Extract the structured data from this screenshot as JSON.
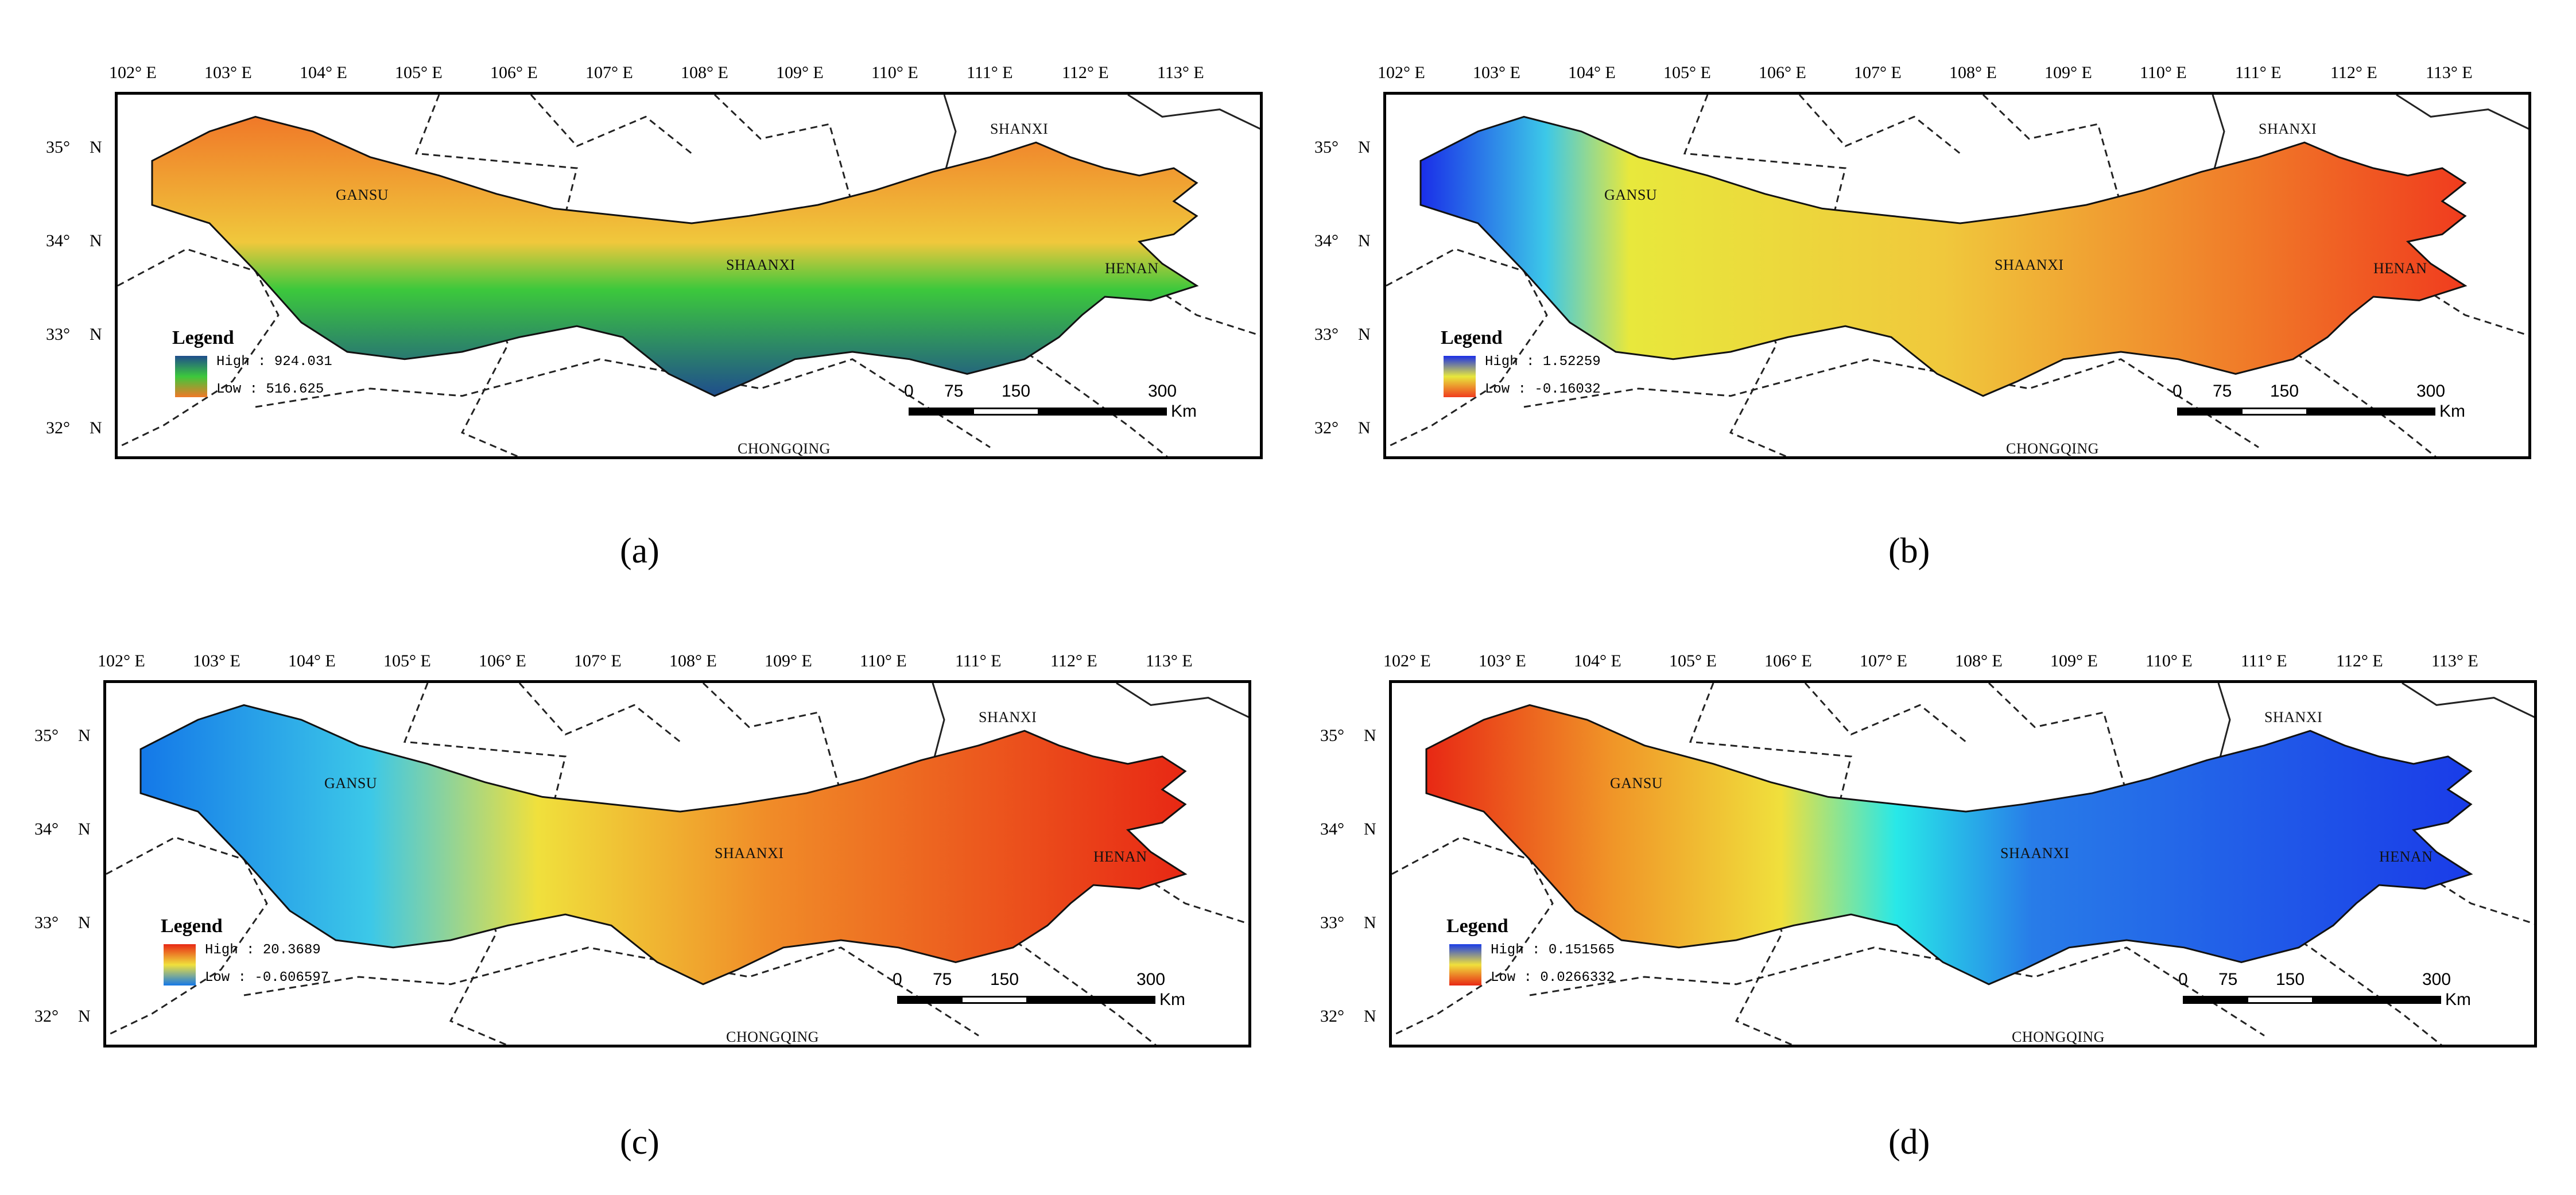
{
  "ticks": {
    "lon": [
      "102°",
      "103°",
      "104°",
      "105°",
      "106°",
      "107°",
      "108°",
      "109°",
      "110°",
      "111°",
      "112°",
      "113°"
    ],
    "lon_suffix": "E",
    "lat": [
      "35°",
      "34°",
      "33°",
      "32°"
    ],
    "lat_suffix": "N"
  },
  "provinces": {
    "gansu": "GANSU",
    "shaanxi": "SHAANXI",
    "shanxi": "SHANXI",
    "henan": "HENAN",
    "chongqing": "CHONGQING"
  },
  "legend_title": "Legend",
  "scale": {
    "labels": [
      "0",
      "75",
      "150",
      "300"
    ],
    "unit": "Km"
  },
  "panels": [
    {
      "caption": "(a)",
      "high": "High : 924.031",
      "low": "Low : 516.625",
      "colors": {
        "high": "#1f4e8c",
        "mid": "#3cc83c",
        "low": "#f07828"
      }
    },
    {
      "caption": "(b)",
      "high": "High : 1.52259",
      "low": "Low : -0.16032",
      "colors": {
        "high": "#1a2ee8",
        "mid": "#e8e83c",
        "low": "#f03c1e"
      }
    },
    {
      "caption": "(c)",
      "high": "High : 20.3689",
      "low": "Low : -0.606597",
      "colors": {
        "high": "#e82814",
        "mid": "#f0e03c",
        "low": "#1478e8"
      }
    },
    {
      "caption": "(d)",
      "high": "High : 0.151565",
      "low": "Low : 0.0266332",
      "colors": {
        "high": "#1a3ce8",
        "mid": "#f0e03c",
        "low": "#e82814"
      }
    }
  ]
}
